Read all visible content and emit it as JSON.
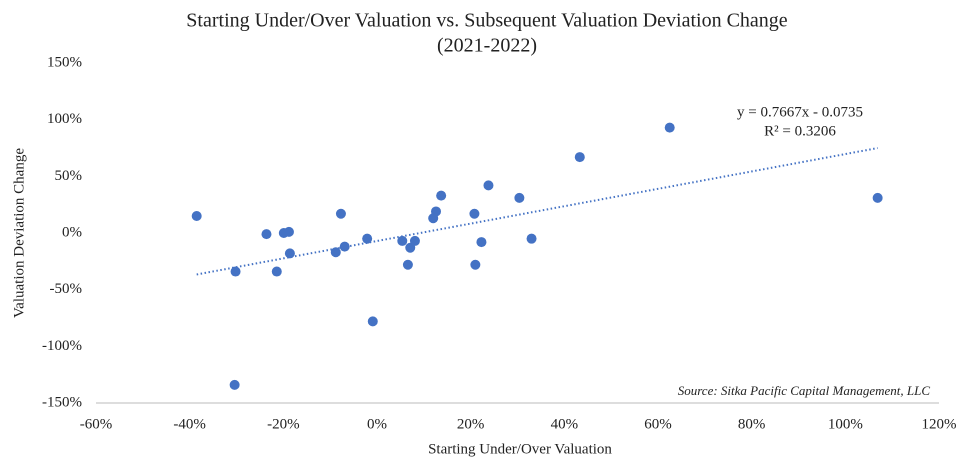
{
  "chart_data": {
    "type": "scatter",
    "title": "Starting Under/Over Valuation vs. Subsequent Valuation Deviation Change",
    "subtitle": "(2021-2022)",
    "x_label": "Starting Under/Over Valuation",
    "y_label": "Valuation Deviation Change",
    "annotations": [
      "y = 0.7667x - 0.0735",
      "R² = 0.3206",
      "Source: Sitka Pacific Capital Management, LLC"
    ],
    "x": [
      -38.5,
      -30.2,
      -30.4,
      -23.6,
      -21.4,
      -19.9,
      -18.8,
      -18.6,
      -8.8,
      -7.7,
      -6.9,
      -2.1,
      -0.9,
      5.4,
      6.6,
      7.1,
      8.1,
      12.0,
      12.6,
      13.7,
      20.8,
      21.0,
      22.3,
      23.8,
      30.4,
      33.0,
      43.3,
      62.5,
      106.9
    ],
    "values": [
      15,
      -34,
      -134,
      -1,
      -34,
      0,
      1,
      -18,
      -17,
      17,
      -12,
      -5,
      -78,
      -7,
      -28,
      -13,
      -7,
      13,
      19,
      33,
      17,
      -28,
      -8,
      42,
      31,
      -5,
      67,
      93,
      31
    ],
    "color": "#4472c4",
    "trendline": true,
    "xlim": [
      -60,
      120
    ],
    "xticks": [
      {
        "value": -60,
        "label": "-60%"
      },
      {
        "value": -40,
        "label": "-40%"
      },
      {
        "value": -20,
        "label": "-20%"
      },
      {
        "value": 0,
        "label": "0%"
      },
      {
        "value": 20,
        "label": "20%"
      },
      {
        "value": 40,
        "label": "40%"
      },
      {
        "value": 60,
        "label": "60%"
      },
      {
        "value": 80,
        "label": "80%"
      },
      {
        "value": 100,
        "label": "100%"
      },
      {
        "value": 120,
        "label": "120%"
      }
    ],
    "ylim": [
      -150,
      150
    ],
    "yticks": [
      {
        "value": -150,
        "label": "-150%"
      },
      {
        "value": -100,
        "label": "-100%"
      },
      {
        "value": -50,
        "label": "-50%"
      },
      {
        "value": 0,
        "label": "0%"
      },
      {
        "value": 50,
        "label": "50%"
      },
      {
        "value": 100,
        "label": "100%"
      },
      {
        "value": 150,
        "label": "150%"
      }
    ]
  }
}
